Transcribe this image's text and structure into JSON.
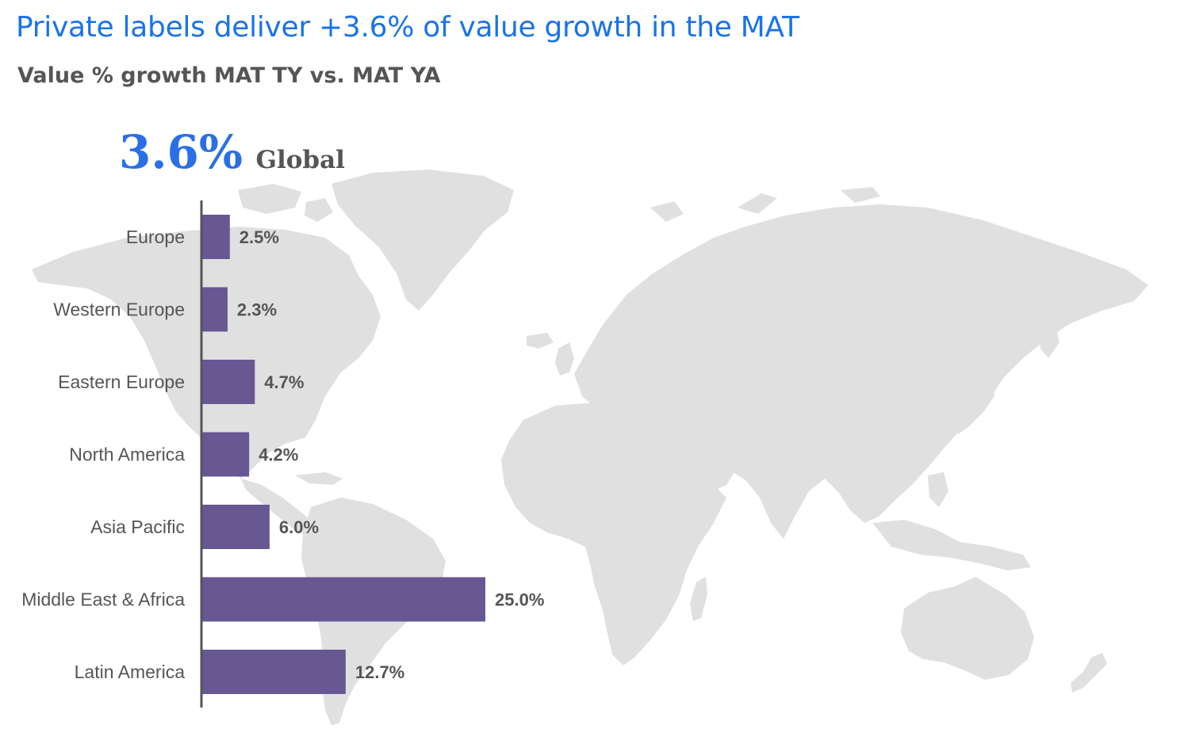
{
  "header": {
    "title": "Private labels deliver +3.6% of value growth in the MAT",
    "subtitle": "Value % growth MAT TY vs. MAT YA"
  },
  "global": {
    "value": "3.6%",
    "label": "Global"
  },
  "colors": {
    "title": "#1a73e8",
    "global_value": "#2a6fe6",
    "bar": "#675792",
    "axis": "#555555",
    "text": "#555555",
    "map": "#e0e0e0"
  },
  "chart_data": {
    "type": "bar",
    "orientation": "horizontal",
    "categories": [
      "Europe",
      "Western Europe",
      "Eastern Europe",
      "North America",
      "Asia Pacific",
      "Middle East & Africa",
      "Latin America"
    ],
    "values": [
      2.5,
      2.3,
      4.7,
      4.2,
      6.0,
      25.0,
      12.7
    ],
    "value_labels": [
      "2.5%",
      "2.3%",
      "4.7%",
      "4.2%",
      "6.0%",
      "25.0%",
      "12.7%"
    ],
    "xlim": [
      0,
      25
    ],
    "grid": false,
    "background": "world map"
  }
}
